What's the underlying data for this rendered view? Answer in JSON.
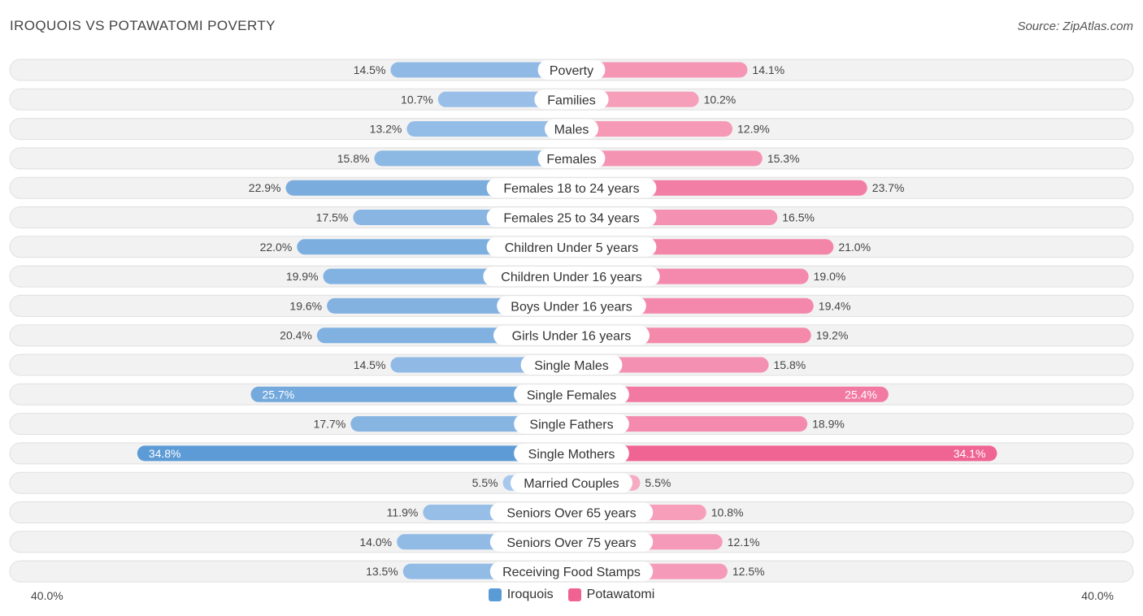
{
  "header": {
    "title": "IROQUOIS VS POTAWATOMI POVERTY",
    "source": "Source: ZipAtlas.com"
  },
  "axis": {
    "left_label": "40.0%",
    "right_label": "40.0%"
  },
  "colors": {
    "iroquois": "#5b9bd5",
    "potawatomi": "#f06292"
  },
  "chart_data": {
    "type": "bar",
    "orientation": "diverging-horizontal",
    "title": "IROQUOIS VS POTAWATOMI POVERTY",
    "xlim": [
      -40,
      40
    ],
    "unit": "%",
    "legend": [
      "Iroquois",
      "Potawatomi"
    ],
    "legend_position": "bottom-center",
    "categories": [
      "Poverty",
      "Families",
      "Males",
      "Females",
      "Females 18 to 24 years",
      "Females 25 to 34 years",
      "Children Under 5 years",
      "Children Under 16 years",
      "Boys Under 16 years",
      "Girls Under 16 years",
      "Single Males",
      "Single Females",
      "Single Fathers",
      "Single Mothers",
      "Married Couples",
      "Seniors Over 65 years",
      "Seniors Over 75 years",
      "Receiving Food Stamps"
    ],
    "series": [
      {
        "name": "Iroquois",
        "values": [
          14.5,
          10.7,
          13.2,
          15.8,
          22.9,
          17.5,
          22.0,
          19.9,
          19.6,
          20.4,
          14.5,
          25.7,
          17.7,
          34.8,
          5.5,
          11.9,
          14.0,
          13.5
        ],
        "labels": [
          "14.5%",
          "10.7%",
          "13.2%",
          "15.8%",
          "22.9%",
          "17.5%",
          "22.0%",
          "19.9%",
          "19.6%",
          "20.4%",
          "14.5%",
          "25.7%",
          "17.7%",
          "34.8%",
          "5.5%",
          "11.9%",
          "14.0%",
          "13.5%"
        ]
      },
      {
        "name": "Potawatomi",
        "values": [
          14.1,
          10.2,
          12.9,
          15.3,
          23.7,
          16.5,
          21.0,
          19.0,
          19.4,
          19.2,
          15.8,
          25.4,
          18.9,
          34.1,
          5.5,
          10.8,
          12.1,
          12.5
        ],
        "labels": [
          "14.1%",
          "10.2%",
          "12.9%",
          "15.3%",
          "23.7%",
          "16.5%",
          "21.0%",
          "19.0%",
          "19.4%",
          "19.2%",
          "15.8%",
          "25.4%",
          "18.9%",
          "34.1%",
          "5.5%",
          "10.8%",
          "12.1%",
          "12.5%"
        ]
      }
    ]
  }
}
